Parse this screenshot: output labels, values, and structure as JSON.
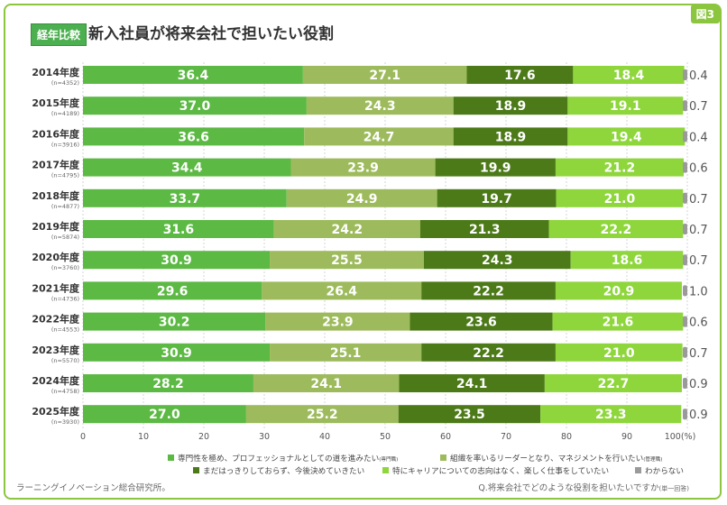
{
  "header": {
    "figure_label": "図3",
    "tag": "経年比較",
    "title": "新入社員が将来会社で担いたい役割"
  },
  "footer": {
    "source": "ラーニングイノベーション総合研究所。",
    "question": "Q.将来会社でどのような役割を担いたいですか",
    "question_note": "(単一回答)"
  },
  "colors": {
    "frame": "#8cc63f",
    "specialist": "#5cb944",
    "manager": "#9dbb5c",
    "undecided": "#4c7a18",
    "no_career": "#8ed63c",
    "unknown": "#9a9a9a"
  },
  "chart_data": {
    "type": "bar",
    "orientation": "horizontal",
    "stacked": true,
    "categories": [
      "2014年度",
      "2015年度",
      "2016年度",
      "2017年度",
      "2018年度",
      "2019年度",
      "2020年度",
      "2021年度",
      "2022年度",
      "2023年度",
      "2024年度",
      "2025年度"
    ],
    "sample_sizes": [
      "(n=4352)",
      "(n=4189)",
      "(n=3916)",
      "(n=4795)",
      "(n=4877)",
      "(n=5874)",
      "(n=3760)",
      "(n=4736)",
      "(n=4553)",
      "(n=5570)",
      "(n=4758)",
      "(n=3930)"
    ],
    "series": [
      {
        "name": "専門性を極め、プロフェッショナルとしての道を進みたい",
        "name_note": "(専門職)",
        "color": "#5cb944",
        "values": [
          36.4,
          37.0,
          36.6,
          34.4,
          33.7,
          31.6,
          30.9,
          29.6,
          30.2,
          30.9,
          28.2,
          27.0
        ]
      },
      {
        "name": "組織を率いるリーダーとなり、マネジメントを行いたい",
        "name_note": "(管理職)",
        "color": "#9dbb5c",
        "values": [
          27.1,
          24.3,
          24.7,
          23.9,
          24.9,
          24.2,
          25.5,
          26.4,
          23.9,
          25.1,
          24.1,
          25.2
        ]
      },
      {
        "name": "まだはっきりしておらず、今後決めていきたい",
        "name_note": "",
        "color": "#4c7a18",
        "values": [
          17.6,
          18.9,
          18.9,
          19.9,
          19.7,
          21.3,
          24.3,
          22.2,
          23.6,
          22.2,
          24.1,
          23.5
        ]
      },
      {
        "name": "特にキャリアについての志向はなく、楽しく仕事をしていたい",
        "name_note": "",
        "color": "#8ed63c",
        "values": [
          18.4,
          19.1,
          19.4,
          21.2,
          21.0,
          22.2,
          18.6,
          20.9,
          21.6,
          21.0,
          22.7,
          23.3
        ]
      },
      {
        "name": "わからない",
        "name_note": "",
        "color": "#9a9a9a",
        "values": [
          0.4,
          0.7,
          0.4,
          0.6,
          0.7,
          0.7,
          0.7,
          1.0,
          0.6,
          0.7,
          0.9,
          0.9
        ]
      }
    ],
    "value_labels": [
      [
        "36.4",
        "27.1",
        "17.6",
        "18.4",
        "0.4"
      ],
      [
        "37.0",
        "24.3",
        "18.9",
        "19.1",
        "0.7"
      ],
      [
        "36.6",
        "24.7",
        "18.9",
        "19.4",
        "0.4"
      ],
      [
        "34.4",
        "23.9",
        "19.9",
        "21.2",
        "0.6"
      ],
      [
        "33.7",
        "24.9",
        "19.7",
        "21.0",
        "0.7"
      ],
      [
        "31.6",
        "24.2",
        "21.3",
        "22.2",
        "0.7"
      ],
      [
        "30.9",
        "25.5",
        "24.3",
        "18.6",
        "0.7"
      ],
      [
        "29.6",
        "26.4",
        "22.2",
        "20.9",
        "1.0"
      ],
      [
        "30.2",
        "23.9",
        "23.6",
        "21.6",
        "0.6"
      ],
      [
        "30.9",
        "25.1",
        "22.2",
        "21.0",
        "0.7"
      ],
      [
        "28.2",
        "24.1",
        "24.1",
        "22.7",
        "0.9"
      ],
      [
        "27.0",
        "25.2",
        "23.5",
        "23.3",
        "0.9"
      ]
    ],
    "x_ticks": [
      "0",
      "10",
      "20",
      "30",
      "40",
      "50",
      "60",
      "70",
      "80",
      "90",
      "100(%)"
    ],
    "xlim": [
      0,
      100
    ],
    "legend_position": "bottom"
  }
}
